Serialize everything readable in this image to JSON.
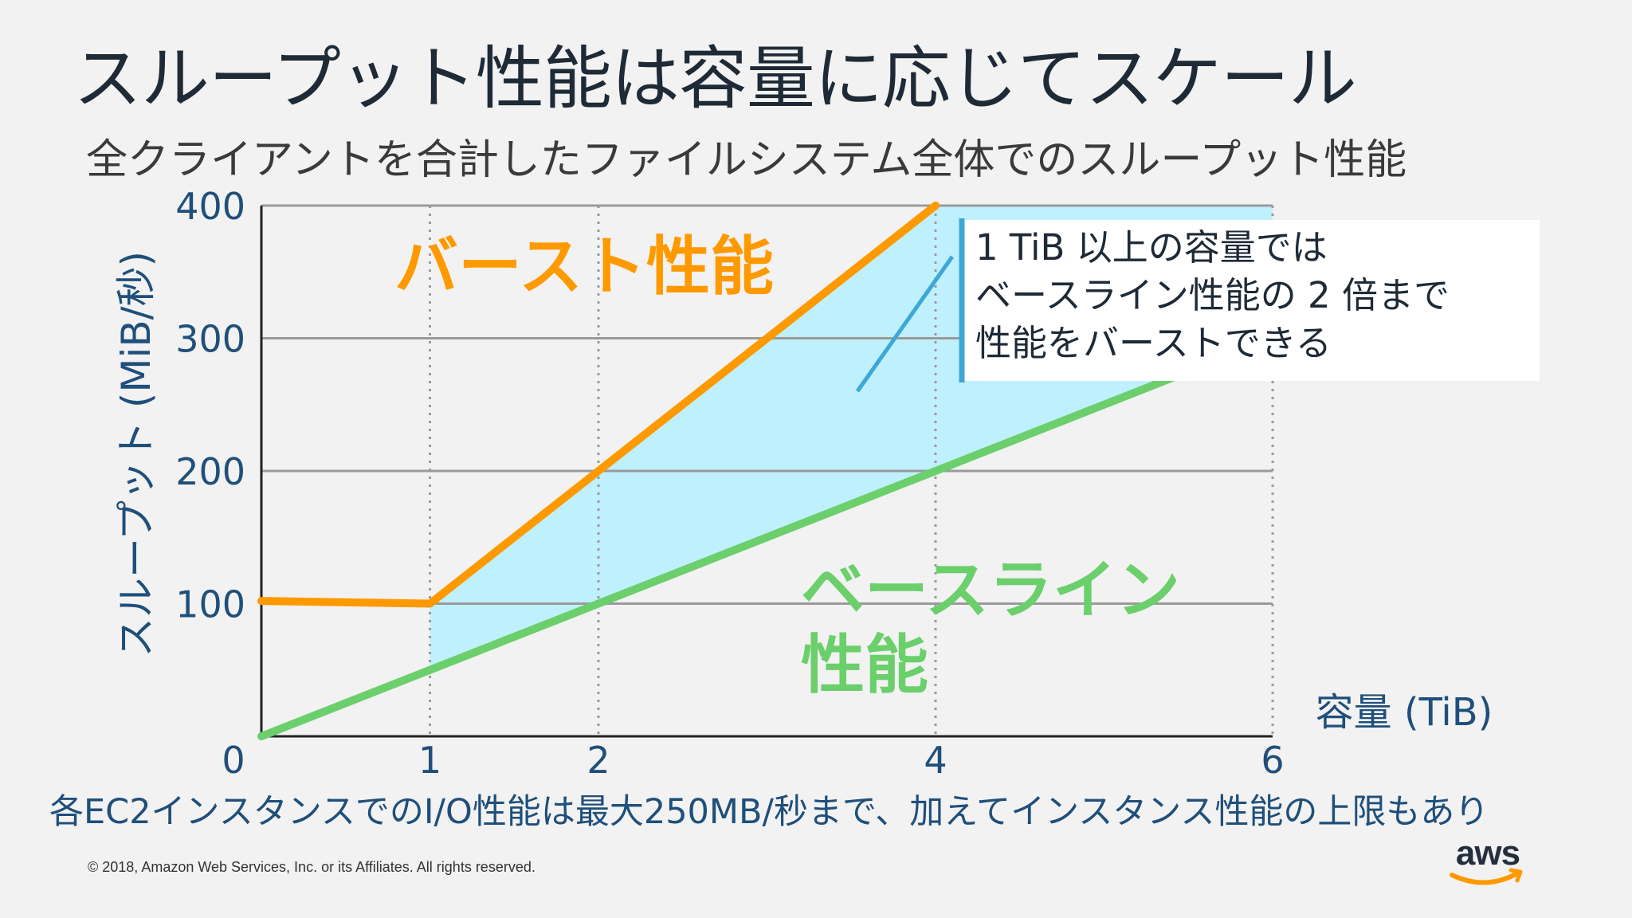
{
  "slide": {
    "title": "スループット性能は容量に応じてスケール",
    "subtitle": "全クライアントを合計したファイルシステム全体でのスループット性能",
    "footnote": "各EC2インスタンスでのI/O性能は最大250MB/秒まで、加えてインスタンス性能の上限もあり",
    "copyright": "© 2018, Amazon Web Services, Inc. or its Affiliates. All rights reserved.",
    "logo_text": "aws"
  },
  "colors": {
    "burst": "#ff9900",
    "baseline": "#6bcf6b",
    "fill": "#bff0fd",
    "axis_text": "#1f4f7a",
    "callout_bar": "#3da8d8",
    "grid": "#9a9a9a"
  },
  "chart_data": {
    "type": "line",
    "xlabel": "容量 (TiB)",
    "ylabel": "スループット (MiB/秒)",
    "xlim": [
      0,
      6
    ],
    "ylim": [
      0,
      400
    ],
    "xticks": [
      1,
      2,
      4,
      6
    ],
    "yticks": [
      100,
      200,
      300,
      400
    ],
    "origin_label": "0",
    "grid": true,
    "series": [
      {
        "name": "バースト性能",
        "color": "#ff9900",
        "x": [
          0,
          1,
          4
        ],
        "y": [
          102,
          100,
          400
        ]
      },
      {
        "name": "ベースライン性能",
        "label_lines": [
          "ベースライン",
          "性能"
        ],
        "color": "#6bcf6b",
        "x": [
          0,
          6
        ],
        "y": [
          0,
          300
        ]
      }
    ],
    "annotation": {
      "lines": [
        "1 TiB 以上の容量では",
        "ベースライン性能の 2 倍まで",
        "性能をバーストできる"
      ]
    }
  }
}
